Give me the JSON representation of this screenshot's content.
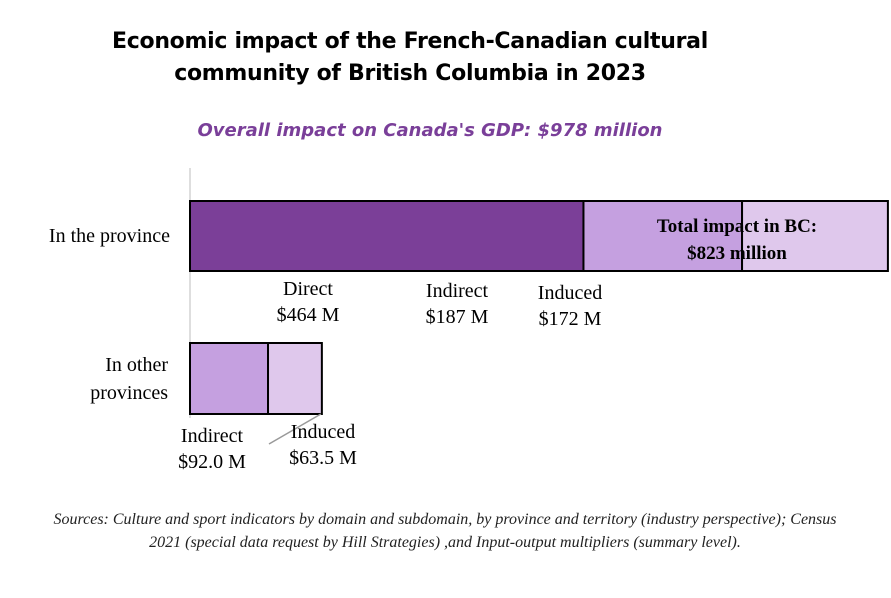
{
  "title_line1": "Economic impact of the French-Canadian cultural",
  "title_line2": "community of British Columbia in 2023",
  "subtitle": "Overall impact on Canada's GDP: $978 million",
  "total_bc_line1": "Total impact in BC:",
  "total_bc_line2": "$823 million",
  "sources": "Sources: Culture and sport indicators by domain and subdomain, by province and territory (industry perspective); Census 2021 (special data request by Hill Strategies) ,and Input-output multipliers (summary level).",
  "chart_data": {
    "type": "bar",
    "orientation": "horizontal",
    "stacked": true,
    "title": "Economic impact of the French-Canadian cultural community of British Columbia in 2023",
    "subtitle": "Overall impact on Canada's GDP: $978 million",
    "units": "$ million",
    "categories": [
      "In the province",
      "In other provinces"
    ],
    "category_lines": [
      [
        "In the province"
      ],
      [
        "In other",
        "provinces"
      ]
    ],
    "series": [
      {
        "name": "Direct",
        "values": [
          464,
          0
        ],
        "color": "#7b3f98",
        "labels": [
          "$464 M",
          ""
        ]
      },
      {
        "name": "Indirect",
        "values": [
          187,
          92.0
        ],
        "color": "#c5a0e0",
        "labels": [
          "$187 M",
          "$92.0 M"
        ]
      },
      {
        "name": "Induced",
        "values": [
          172,
          63.5
        ],
        "color": "#dfc8ec",
        "labels": [
          "$172 M",
          "$63.5 M"
        ]
      }
    ],
    "grid": false
  }
}
